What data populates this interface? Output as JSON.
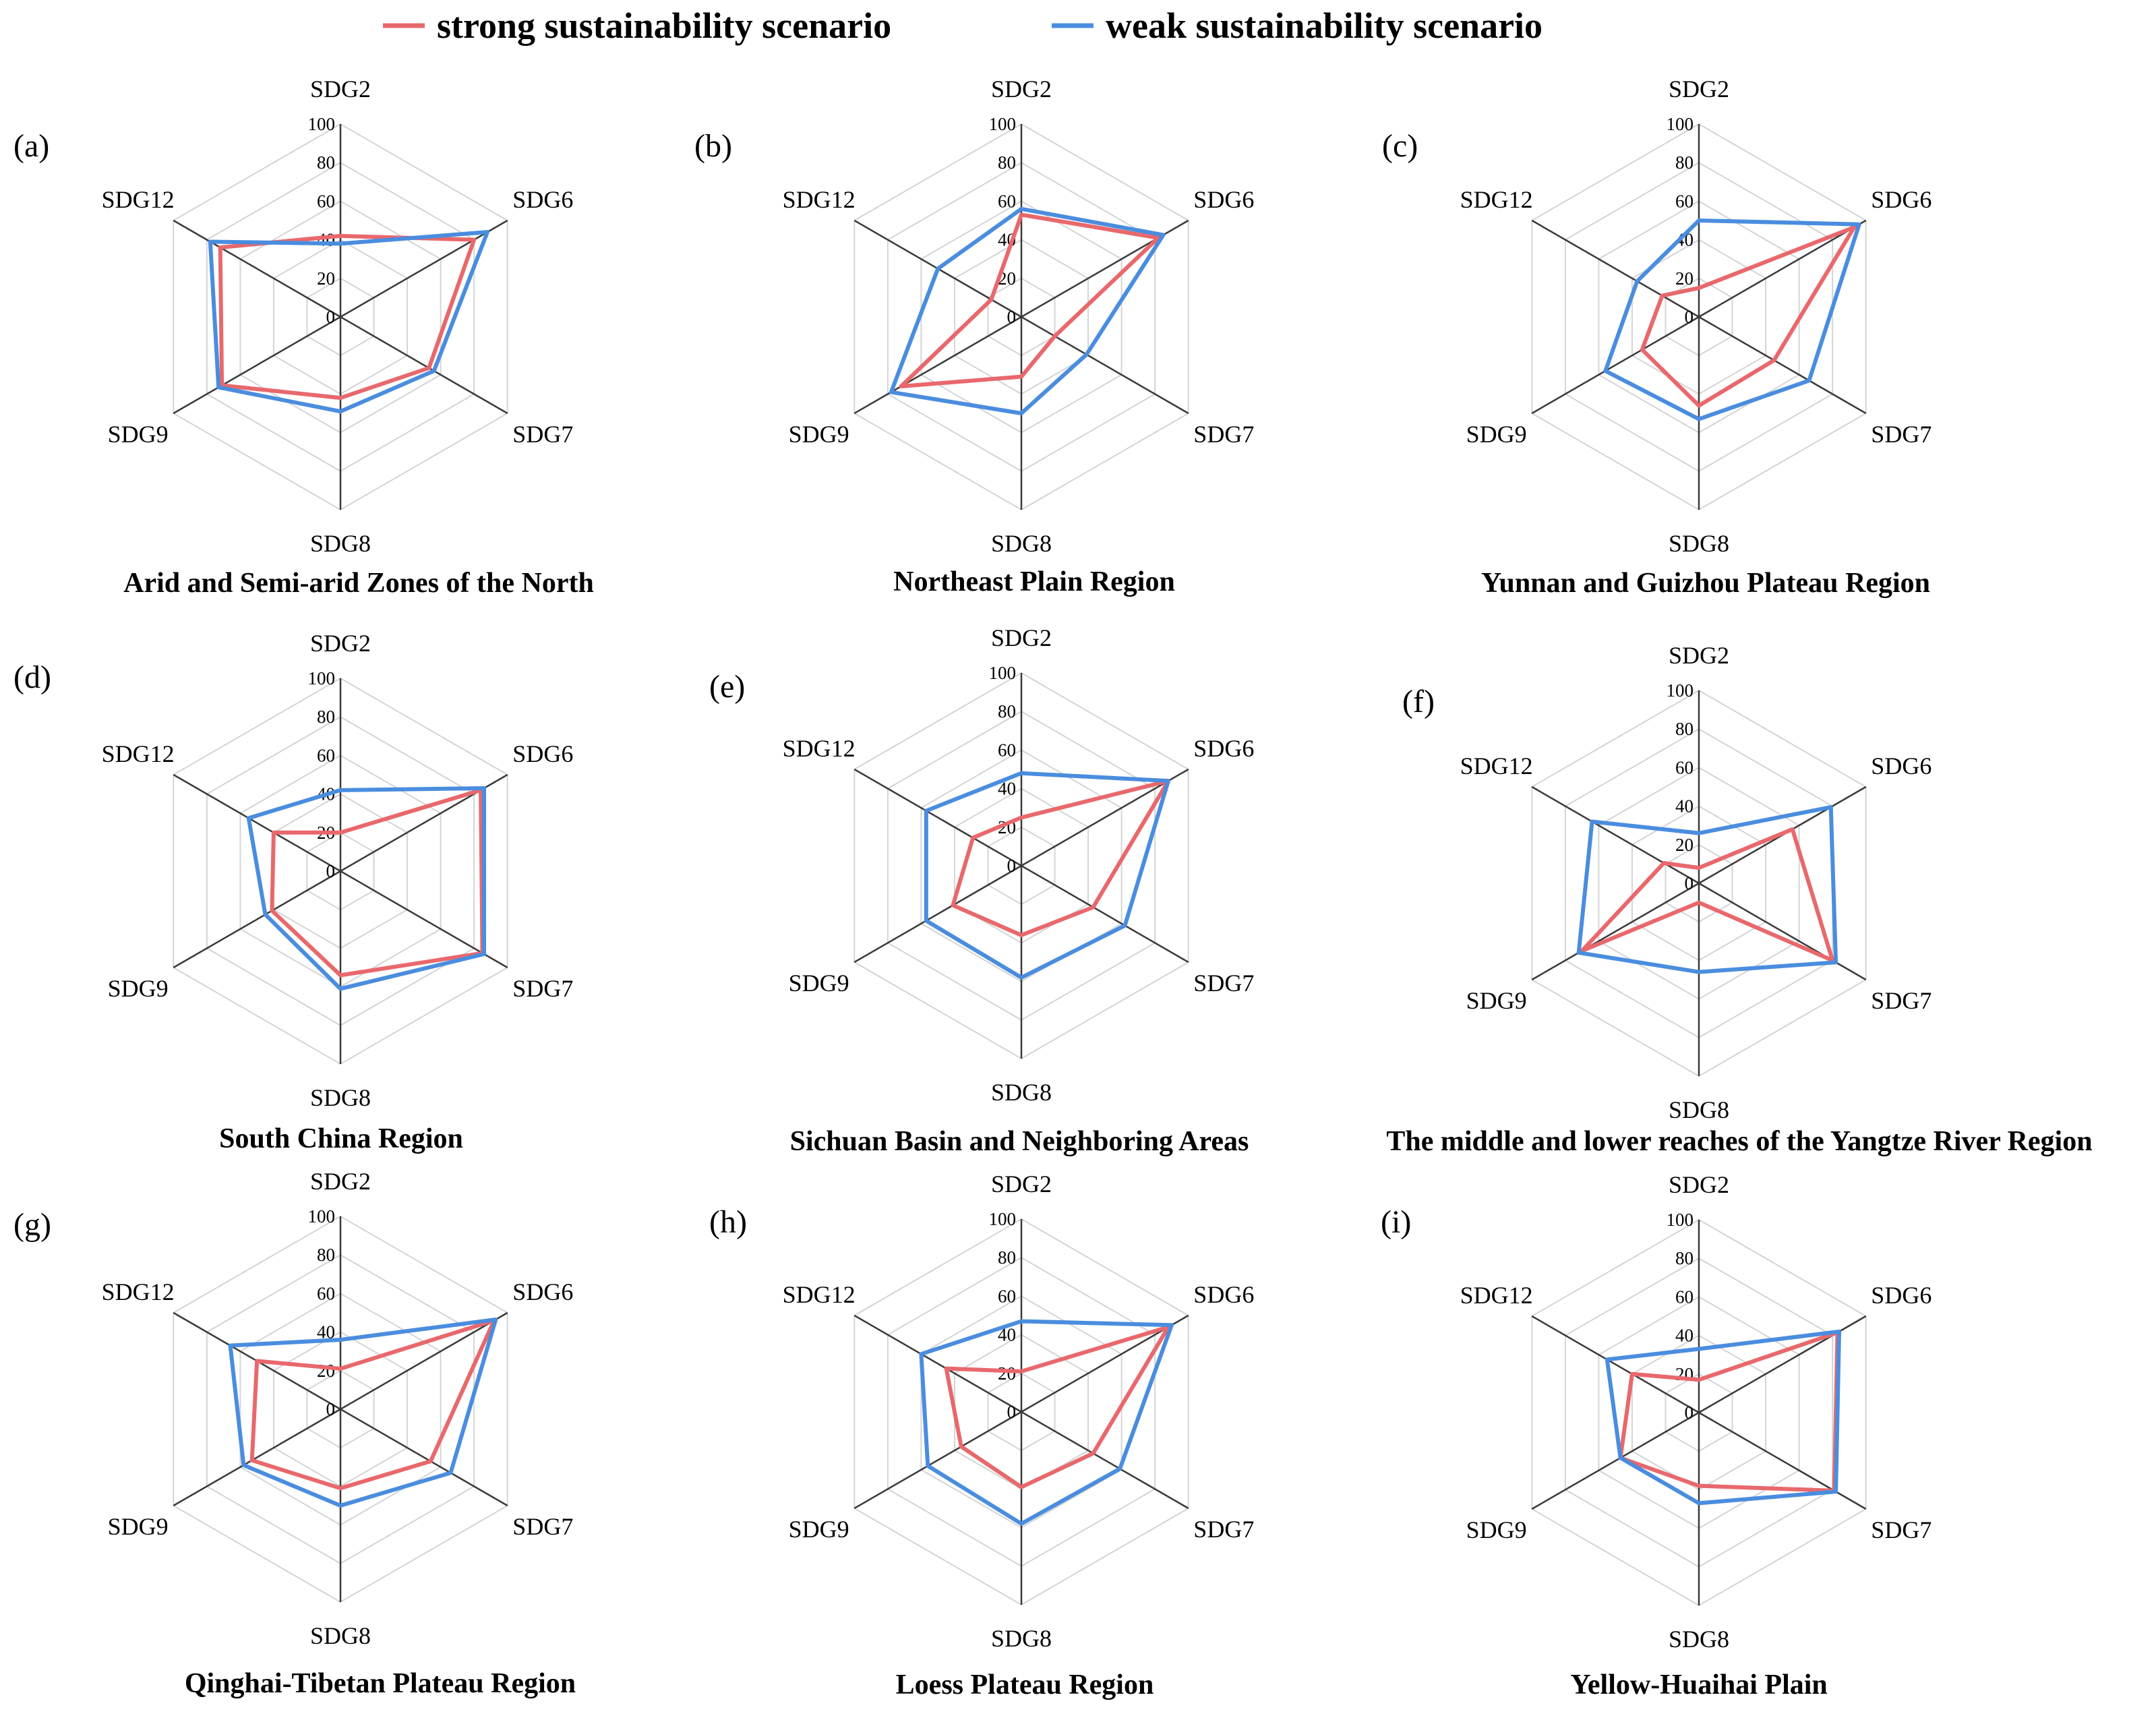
{
  "legend": [
    {
      "label": "strong sustainability scenario",
      "color": "#e8686c"
    },
    {
      "label": "weak sustainability scenario",
      "color": "#4a8ddf"
    }
  ],
  "chart_data": [
    {
      "type": "radar",
      "panel": "(a)",
      "title": "Arid and Semi-arid Zones of the North",
      "axes": [
        "SDG2",
        "SDG6",
        "SDG7",
        "SDG8",
        "SDG9",
        "SDG12"
      ],
      "rlim": [
        0,
        100
      ],
      "ticks": [
        "0",
        "20",
        "40",
        "60",
        "80",
        "100"
      ],
      "series": [
        {
          "name": "strong sustainability scenario",
          "values": [
            42,
            80,
            53,
            42,
            71,
            72
          ]
        },
        {
          "name": "weak sustainability scenario",
          "values": [
            38,
            88,
            56,
            49,
            73,
            78
          ]
        }
      ]
    },
    {
      "type": "radar",
      "panel": "(b)",
      "title": "Northeast Plain Region",
      "axes": [
        "SDG2",
        "SDG6",
        "SDG7",
        "SDG8",
        "SDG9",
        "SDG12"
      ],
      "rlim": [
        0,
        100
      ],
      "ticks": [
        "0",
        "20",
        "40",
        "60",
        "80",
        "100"
      ],
      "series": [
        {
          "name": "strong sustainability scenario",
          "values": [
            53,
            82,
            20,
            31,
            72,
            18
          ]
        },
        {
          "name": "weak sustainability scenario",
          "values": [
            56,
            85,
            39,
            50,
            78,
            50
          ]
        }
      ]
    },
    {
      "type": "radar",
      "panel": "(c)",
      "title": "Yunnan and Guizhou Plateau Region",
      "axes": [
        "SDG2",
        "SDG6",
        "SDG7",
        "SDG8",
        "SDG9",
        "SDG12"
      ],
      "rlim": [
        0,
        100
      ],
      "ticks": [
        "0",
        "20",
        "40",
        "60",
        "80",
        "100"
      ],
      "series": [
        {
          "name": "strong sustainability scenario",
          "values": [
            15,
            93,
            45,
            46,
            34,
            22
          ]
        },
        {
          "name": "weak sustainability scenario",
          "values": [
            50,
            96,
            66,
            53,
            56,
            37
          ]
        }
      ]
    },
    {
      "type": "radar",
      "panel": "(d)",
      "title": "South China Region",
      "axes": [
        "SDG2",
        "SDG6",
        "SDG7",
        "SDG8",
        "SDG9",
        "SDG12"
      ],
      "rlim": [
        0,
        100
      ],
      "ticks": [
        "0",
        "20",
        "40",
        "60",
        "80",
        "100"
      ],
      "series": [
        {
          "name": "strong sustainability scenario",
          "values": [
            20,
            84,
            85,
            54,
            41,
            40
          ]
        },
        {
          "name": "weak sustainability scenario",
          "values": [
            42,
            86,
            86,
            61,
            45,
            55
          ]
        }
      ]
    },
    {
      "type": "radar",
      "panel": "(e)",
      "title": "Sichuan Basin and Neighboring Areas",
      "axes": [
        "SDG2",
        "SDG6",
        "SDG7",
        "SDG8",
        "SDG9",
        "SDG12"
      ],
      "rlim": [
        0,
        100
      ],
      "ticks": [
        "0",
        "20",
        "40",
        "60",
        "80",
        "100"
      ],
      "series": [
        {
          "name": "strong sustainability scenario",
          "values": [
            25,
            88,
            43,
            36,
            41,
            29
          ]
        },
        {
          "name": "weak sustainability scenario",
          "values": [
            48,
            88,
            62,
            58,
            57,
            57
          ]
        }
      ]
    },
    {
      "type": "radar",
      "panel": "(f)",
      "title": "The middle and lower reaches of the Yangtze River Region",
      "axes": [
        "SDG2",
        "SDG6",
        "SDG7",
        "SDG8",
        "SDG9",
        "SDG12"
      ],
      "rlim": [
        0,
        100
      ],
      "ticks": [
        "0",
        "20",
        "40",
        "60",
        "80",
        "100"
      ],
      "series": [
        {
          "name": "strong sustainability scenario",
          "values": [
            8,
            56,
            80,
            10,
            70,
            21
          ]
        },
        {
          "name": "weak sustainability scenario",
          "values": [
            26,
            79,
            82,
            46,
            72,
            64
          ]
        }
      ]
    },
    {
      "type": "radar",
      "panel": "(g)",
      "title": "Qinghai-Tibetan Plateau Region",
      "axes": [
        "SDG2",
        "SDG6",
        "SDG7",
        "SDG8",
        "SDG9",
        "SDG12"
      ],
      "rlim": [
        0,
        100
      ],
      "ticks": [
        "0",
        "20",
        "40",
        "60",
        "80",
        "100"
      ],
      "series": [
        {
          "name": "strong sustainability scenario",
          "values": [
            21,
            92,
            54,
            41,
            53,
            50
          ]
        },
        {
          "name": "weak sustainability scenario",
          "values": [
            36,
            93,
            66,
            50,
            58,
            66
          ]
        }
      ]
    },
    {
      "type": "radar",
      "panel": "(h)",
      "title": "Loess Plateau Region",
      "axes": [
        "SDG2",
        "SDG6",
        "SDG7",
        "SDG8",
        "SDG9",
        "SDG12"
      ],
      "rlim": [
        0,
        100
      ],
      "ticks": [
        "0",
        "20",
        "40",
        "60",
        "80",
        "100"
      ],
      "series": [
        {
          "name": "strong sustainability scenario",
          "values": [
            21,
            88,
            43,
            39,
            36,
            45
          ]
        },
        {
          "name": "weak sustainability scenario",
          "values": [
            47,
            90,
            59,
            58,
            56,
            60
          ]
        }
      ]
    },
    {
      "type": "radar",
      "panel": "(i)",
      "title": "Yellow-Huaihai Plain",
      "axes": [
        "SDG2",
        "SDG6",
        "SDG7",
        "SDG8",
        "SDG9",
        "SDG12"
      ],
      "rlim": [
        0,
        100
      ],
      "ticks": [
        "0",
        "20",
        "40",
        "60",
        "80",
        "100"
      ],
      "series": [
        {
          "name": "strong sustainability scenario",
          "values": [
            17,
            83,
            81,
            38,
            47,
            40
          ]
        },
        {
          "name": "weak sustainability scenario",
          "values": [
            33,
            84,
            82,
            47,
            47,
            55
          ]
        }
      ]
    }
  ]
}
